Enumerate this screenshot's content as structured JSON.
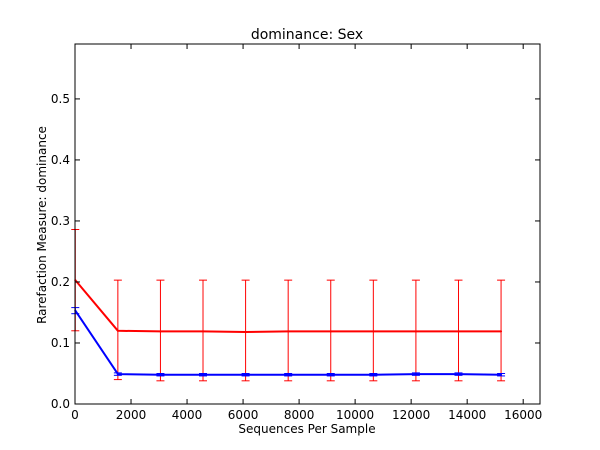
{
  "chart_data": {
    "type": "line",
    "title": "dominance: Sex",
    "xlabel": "Sequences Per Sample",
    "ylabel": "Rarefaction Measure: dominance",
    "xlim": [
      0,
      16600
    ],
    "ylim": [
      0.0,
      0.59
    ],
    "x_ticks": [
      0,
      2000,
      4000,
      6000,
      8000,
      10000,
      12000,
      14000,
      16000
    ],
    "y_ticks": [
      0.0,
      0.1,
      0.2,
      0.3,
      0.4,
      0.5
    ],
    "x_tick_labels": [
      "0",
      "2000",
      "4000",
      "6000",
      "8000",
      "10000",
      "12000",
      "14000",
      "16000"
    ],
    "y_tick_labels": [
      "0.0",
      "0.1",
      "0.2",
      "0.3",
      "0.4",
      "0.5"
    ],
    "grid": false,
    "legend": "none",
    "x": [
      10,
      1530,
      3050,
      4570,
      6090,
      7610,
      9130,
      10650,
      12170,
      13690,
      15210
    ],
    "series": [
      {
        "color": "#ff0000",
        "values": [
          0.203,
          0.12,
          0.119,
          0.119,
          0.118,
          0.119,
          0.119,
          0.119,
          0.119,
          0.119,
          0.119
        ],
        "err_low": [
          0.12,
          0.04,
          0.038,
          0.038,
          0.038,
          0.038,
          0.038,
          0.038,
          0.038,
          0.038,
          0.038
        ],
        "err_high": [
          0.286,
          0.203,
          0.203,
          0.203,
          0.203,
          0.203,
          0.203,
          0.203,
          0.203,
          0.203,
          0.203
        ]
      },
      {
        "color": "#0000ff",
        "values": [
          0.153,
          0.049,
          0.048,
          0.048,
          0.048,
          0.048,
          0.048,
          0.048,
          0.049,
          0.049,
          0.048
        ],
        "err_low": [
          0.148,
          0.047,
          0.046,
          0.046,
          0.046,
          0.046,
          0.046,
          0.046,
          0.047,
          0.047,
          0.046
        ],
        "err_high": [
          0.158,
          0.051,
          0.05,
          0.05,
          0.05,
          0.05,
          0.05,
          0.05,
          0.051,
          0.051,
          0.05
        ]
      }
    ]
  }
}
